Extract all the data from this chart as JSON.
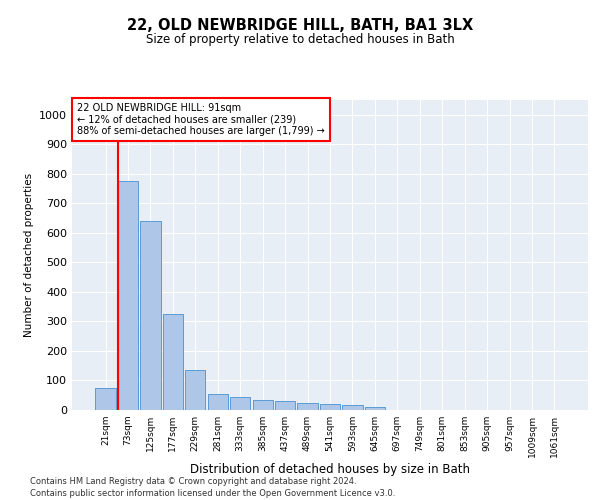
{
  "title1": "22, OLD NEWBRIDGE HILL, BATH, BA1 3LX",
  "title2": "Size of property relative to detached houses in Bath",
  "xlabel": "Distribution of detached houses by size in Bath",
  "ylabel": "Number of detached properties",
  "bar_labels": [
    "21sqm",
    "73sqm",
    "125sqm",
    "177sqm",
    "229sqm",
    "281sqm",
    "333sqm",
    "385sqm",
    "437sqm",
    "489sqm",
    "541sqm",
    "593sqm",
    "645sqm",
    "697sqm",
    "749sqm",
    "801sqm",
    "853sqm",
    "905sqm",
    "957sqm",
    "1009sqm",
    "1061sqm"
  ],
  "bar_values": [
    75,
    775,
    640,
    325,
    135,
    55,
    45,
    35,
    30,
    25,
    20,
    18,
    10,
    0,
    0,
    0,
    0,
    0,
    0,
    0,
    0
  ],
  "bar_color": "#aec6e8",
  "bar_edge_color": "#5b9bd5",
  "annotation_line1": "22 OLD NEWBRIDGE HILL: 91sqm",
  "annotation_line2": "← 12% of detached houses are smaller (239)",
  "annotation_line3": "88% of semi-detached houses are larger (1,799) →",
  "redline_bar_index": 1,
  "ylim": [
    0,
    1050
  ],
  "yticks": [
    0,
    100,
    200,
    300,
    400,
    500,
    600,
    700,
    800,
    900,
    1000
  ],
  "bg_color": "#e8eef5",
  "footer1": "Contains HM Land Registry data © Crown copyright and database right 2024.",
  "footer2": "Contains public sector information licensed under the Open Government Licence v3.0."
}
